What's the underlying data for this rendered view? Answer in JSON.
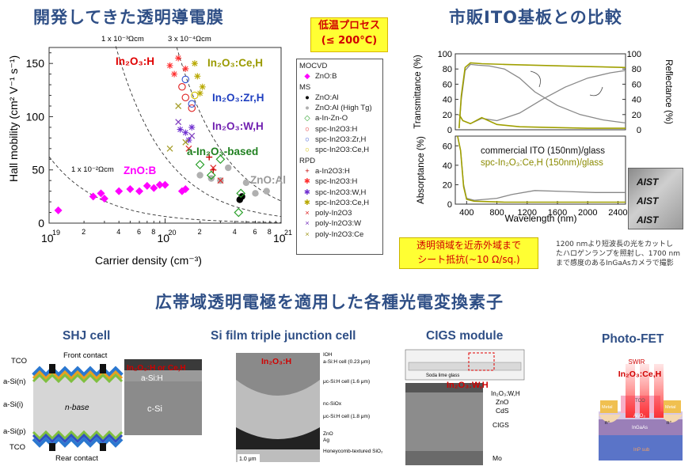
{
  "titles": {
    "left": "開発してきた透明導電膜",
    "right": "市販ITO基板との比較",
    "bottom": "広帯域透明電極を適用した各種光電変換素子"
  },
  "low_temp_box": {
    "line1": "低温プロセス",
    "line2": "(≤ 200°C)"
  },
  "ito_box": {
    "line1": "透明領域を近赤外域まで",
    "line2": "シート抵抗(~10 Ω/sq.)"
  },
  "camera_note": [
    "1200 nmより短波長の光をカットし",
    "たハロゲンランプを照射し、1700 nm",
    "まで感度のあるInGaAsカメラで撮影"
  ],
  "mobility_chart": {
    "chart_data": {
      "type": "scatter",
      "xlabel": "Carrier density (cm⁻³)",
      "ylabel": "Hall mobility (cm² V⁻¹ s⁻¹)",
      "xscale": "log",
      "xlim": [
        1e+19,
        1e+21
      ],
      "ylim": [
        0,
        165
      ],
      "x_ticks": [
        "10",
        "10",
        "10"
      ],
      "x_tick_exps": [
        "19",
        "20",
        "21"
      ],
      "x_minor_labels": [
        "2",
        "4",
        "6",
        "8",
        "2",
        "4",
        "6",
        "8"
      ],
      "y_ticks": [
        "0",
        "50",
        "100",
        "150"
      ],
      "resistivity_lines": [
        "1 x 10⁻³Ωcm",
        "3 x 10⁻⁴Ωcm",
        "1 x 10⁻²Ωcm"
      ],
      "region_labels": [
        "In₂O₃:H",
        "In₂O₃:Ce,H",
        "In₂O₃:Zr,H",
        "In₂O₃:W,H",
        "a-In₂O₃-based",
        "ZnO:B",
        "ZnO:Al"
      ],
      "series": [
        {
          "name": "ZnO:B",
          "marker": "diamond-filled",
          "color": "#ff00ff",
          "x": [
            1.2e+19,
            2.4e+19,
            2.8e+19,
            3e+19,
            4e+19,
            5e+19,
            6e+19,
            7e+19,
            8e+19,
            9e+19,
            1e+20,
            1.4e+20,
            1.5e+20
          ],
          "y": [
            12,
            25,
            28,
            23,
            30,
            32,
            30,
            35,
            33,
            36,
            36,
            30,
            32
          ]
        },
        {
          "name": "ZnO:Al",
          "marker": "circle-filled",
          "color": "#000000",
          "x": [
            4.4e+20,
            4.6e+20
          ],
          "y": [
            22,
            25
          ]
        },
        {
          "name": "ZnO:Al (High Tg)",
          "marker": "circle-filled",
          "color": "#b0b0b0",
          "x": [
            2e+20,
            2.5e+20,
            3e+20,
            3.5e+20,
            5e+20,
            6e+20,
            7.5e+20
          ],
          "y": [
            45,
            42,
            40,
            52,
            38,
            28,
            30
          ]
        },
        {
          "name": "a-In-Zn-O",
          "marker": "diamond-open",
          "color": "#2aa02a",
          "x": [
            2e+20,
            2.5e+20,
            3e+20,
            4.5e+20,
            4.3e+20
          ],
          "y": [
            55,
            45,
            60,
            28,
            10
          ]
        },
        {
          "name": "spc-In2O3:H",
          "marker": "circle-open",
          "color": "#e02020",
          "x": [
            1.4e+20,
            1.5e+20,
            1.7e+20
          ],
          "y": [
            128,
            118,
            108
          ]
        },
        {
          "name": "spc-In2O3:Zr,H",
          "marker": "circle-open",
          "color": "#3050d0",
          "x": [
            1.5e+20,
            1.7e+20
          ],
          "y": [
            135,
            112
          ]
        },
        {
          "name": "spc-In2O3:Ce,H",
          "marker": "circle-open",
          "color": "#d4c000",
          "x": [
            1.8e+20
          ],
          "y": [
            120
          ]
        },
        {
          "name": "a-In2O3:H",
          "marker": "plus",
          "color": "#c00000",
          "x": [
            2.4e+20,
            2.6e+20
          ],
          "y": [
            62,
            50
          ]
        },
        {
          "name": "spc-In2O3:H (RPD)",
          "marker": "asterisk",
          "color": "#ff3030",
          "x": [
            1.1e+20,
            1.2e+20,
            1.3e+20,
            1.5e+20
          ],
          "y": [
            148,
            140,
            155,
            145
          ]
        },
        {
          "name": "spc-In2O3:W,H",
          "marker": "asterisk",
          "color": "#7030d0",
          "x": [
            1.35e+20,
            1.5e+20,
            1.6e+20,
            1.7e+20
          ],
          "y": [
            88,
            85,
            78,
            90
          ]
        },
        {
          "name": "spc-In2O3:Ce,H (RPD)",
          "marker": "asterisk",
          "color": "#b8a800",
          "x": [
            1.8e+20,
            1.9e+20,
            2e+20,
            2.1e+20
          ],
          "y": [
            150,
            138,
            122,
            128
          ]
        },
        {
          "name": "poly-In2O3",
          "marker": "x",
          "color": "#e03030",
          "x": [
            1.6e+20,
            2.6e+20,
            3e+20
          ],
          "y": [
            70,
            52,
            40
          ]
        },
        {
          "name": "poly-In2O3:W",
          "marker": "x",
          "color": "#8040c0",
          "x": [
            1.3e+20,
            1.7e+20
          ],
          "y": [
            95,
            82
          ]
        },
        {
          "name": "poly-In2O3:Ce",
          "marker": "x",
          "color": "#a8a030",
          "x": [
            1.1e+20,
            1.3e+20,
            1.5e+20
          ],
          "y": [
            70,
            110,
            76
          ]
        }
      ]
    }
  },
  "legend": {
    "sections": [
      {
        "header": "MOCVD",
        "items": [
          {
            "label": "ZnO:B",
            "sym": "◆",
            "color": "#ff00ff"
          }
        ]
      },
      {
        "header": "MS",
        "items": [
          {
            "label": "ZnO:Al",
            "sym": "●",
            "color": "#000000"
          },
          {
            "label": "ZnO:Al (High Tg)",
            "sym": "●",
            "color": "#b0b0b0"
          },
          {
            "label": "a-In-Zn-O",
            "sym": "◇",
            "color": "#2aa02a"
          },
          {
            "label": "spc-In2O3:H",
            "sym": "○",
            "color": "#e02020"
          },
          {
            "label": "spc-In2O3:Zr,H",
            "sym": "○",
            "color": "#3050d0"
          },
          {
            "label": "spc-In2O3:Ce,H",
            "sym": "○",
            "color": "#d4c000"
          }
        ]
      },
      {
        "header": "RPD",
        "items": [
          {
            "label": "a-In2O3:H",
            "sym": "+",
            "color": "#c00000"
          },
          {
            "label": "spc-In2O3:H",
            "sym": "✱",
            "color": "#ff3030"
          },
          {
            "label": "spc-In2O3:W,H",
            "sym": "✱",
            "color": "#7030d0"
          },
          {
            "label": "spc-In2O3:Ce,H",
            "sym": "✱",
            "color": "#b8a800"
          },
          {
            "label": "poly-In2O3",
            "sym": "×",
            "color": "#e03030"
          },
          {
            "label": "poly-In2O3:W",
            "sym": "×",
            "color": "#8040c0"
          },
          {
            "label": "poly-In2O3:Ce",
            "sym": "×",
            "color": "#a8a030"
          }
        ]
      }
    ]
  },
  "spectra_chart": {
    "chart_data": {
      "type": "line",
      "xlabel": "Wavelength (nm)",
      "x_ticks": [
        "400",
        "800",
        "1200",
        "1600",
        "2000",
        "2400"
      ],
      "xlim": [
        250,
        2500
      ],
      "top_left_ylabel": "Transmittance (%)",
      "top_right_ylabel": "Reflectance (%)",
      "bottom_ylabel": "Absorptance (%)",
      "top_ticks": [
        "0",
        "20",
        "40",
        "60",
        "80",
        "100"
      ],
      "top_right_ticks": [
        "0",
        "20",
        "40",
        "60",
        "80",
        "100"
      ],
      "bottom_ticks": [
        "0",
        "20",
        "40",
        "60"
      ],
      "series": [
        {
          "name": "commercial ITO (150nm)/glass",
          "color": "#888888"
        },
        {
          "name": "spc-In₂O₃:Ce,H (150nm)/glass",
          "color": "#a0a000"
        }
      ]
    }
  },
  "brand_text": [
    "AIST",
    "AIST",
    "AIST"
  ],
  "devices": [
    {
      "title": "SHJ cell",
      "labels": [
        "Front contact",
        "TCO",
        "a-Si(n)",
        "a-Si(i)",
        "a-Si(p)",
        "TCO",
        "Rear contact",
        "n-base",
        "In₂O₃:H or Ce,H",
        "a-Si:H",
        "c-Si"
      ]
    },
    {
      "title": "Si film triple junction cell",
      "labels": [
        "In₂O₃:H",
        "IOH",
        "a-Si:H cell (0.23 μm)",
        "μc-Si:H cell (1.6 μm)",
        "nc-SiOx",
        "μc-Si:H cell (1.8 μm)",
        "ZnO",
        "Ag",
        "Honeycomb-textured SiO₂",
        "1.0 μm"
      ]
    },
    {
      "title": "CIGS module",
      "labels": [
        "In₂O₃:W,H",
        "ZnO",
        "CdS",
        "CIGS",
        "Mo",
        "Soda lime glass"
      ]
    },
    {
      "title": "Photo-FET",
      "labels": [
        "SWIR",
        "In₂O₃:Ce,H",
        "Metal",
        "Metal",
        "TCO",
        "Al₂O₃",
        "InGaAs",
        "n⁺",
        "n⁺",
        "InP sub"
      ]
    }
  ]
}
